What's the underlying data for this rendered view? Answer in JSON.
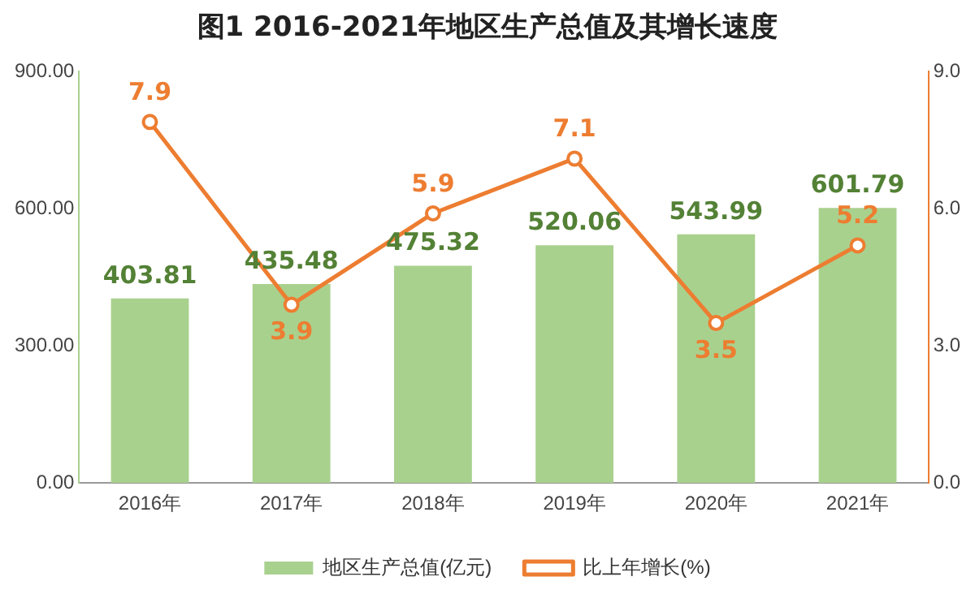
{
  "chart_data": {
    "type": "bar",
    "title": "图1 2016-2021年地区生产总值及其增长速度",
    "categories": [
      "2016年",
      "2017年",
      "2018年",
      "2019年",
      "2020年",
      "2021年"
    ],
    "series": [
      {
        "name": "地区生产总值(亿元)",
        "color": "#a9d18e",
        "values": [
          403.81,
          435.48,
          475.32,
          520.06,
          543.99,
          601.79
        ]
      },
      {
        "name": "比上年增长(%)",
        "type": "line",
        "axis": "y2",
        "color": "#ed7d31",
        "values": [
          7.9,
          3.9,
          5.9,
          7.1,
          3.5,
          5.2
        ]
      }
    ],
    "ylim": [
      0,
      900
    ],
    "yticks": [
      {
        "value": 0,
        "label": "0.00"
      },
      {
        "value": 300,
        "label": "300.00"
      },
      {
        "value": 600,
        "label": "600.00"
      },
      {
        "value": 900,
        "label": "900.00"
      }
    ],
    "y2lim": [
      0,
      9
    ],
    "y2ticks": [
      {
        "value": 0,
        "label": "0.0"
      },
      {
        "value": 3,
        "label": "3.0"
      },
      {
        "value": 6,
        "label": "6.0"
      },
      {
        "value": 9,
        "label": "9.0"
      }
    ],
    "data_labels": true,
    "legend": "bottom",
    "marker": "circle",
    "grid": false
  }
}
